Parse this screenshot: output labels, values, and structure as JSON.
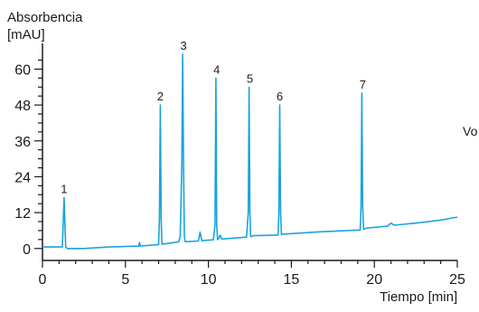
{
  "chart_data": {
    "type": "line",
    "ylabel_line1": "Absorbencia",
    "ylabel_line2": "[mAU]",
    "xlabel": "Tiempo [min]",
    "side_text": "Vo",
    "xlim": [
      0,
      25
    ],
    "ylim": [
      -4,
      68
    ],
    "x_ticks": [
      0,
      5,
      10,
      15,
      20,
      25
    ],
    "y_ticks": [
      0,
      12,
      24,
      36,
      48,
      60
    ],
    "grid": false,
    "line_color": "#1aa3dc",
    "series": [
      {
        "x": [
          0,
          1.2,
          1.3,
          1.4,
          1.5,
          2.5,
          4.0,
          5.8,
          5.85,
          5.9,
          7.0,
          7.05,
          7.1,
          7.15,
          7.2,
          7.3,
          8.2,
          8.3,
          8.4,
          8.45,
          8.5,
          8.55,
          8.6,
          8.7,
          9.4,
          9.5,
          9.6,
          9.7,
          10.3,
          10.4,
          10.45,
          10.5,
          10.55,
          10.6,
          10.7,
          10.8,
          10.9,
          12.3,
          12.4,
          12.45,
          12.5,
          12.55,
          12.6,
          12.7,
          14.2,
          14.25,
          14.3,
          14.35,
          14.4,
          14.5,
          16.5,
          19.15,
          19.2,
          19.25,
          19.3,
          19.35,
          19.4,
          19.5,
          20.8,
          21.0,
          21.2,
          22.5,
          24.0,
          25.0
        ],
        "values": [
          0.5,
          0.5,
          17,
          0.5,
          0,
          0,
          0.5,
          0.8,
          2,
          0.8,
          1.3,
          10,
          48,
          10,
          1.5,
          1.5,
          2.2,
          4,
          28,
          65,
          28,
          4,
          2.3,
          2.3,
          2.5,
          5.5,
          2.6,
          2.7,
          2.9,
          8,
          57,
          8,
          3,
          3.1,
          4.5,
          3.2,
          3.2,
          3.8,
          12,
          54,
          12,
          4,
          4,
          4.3,
          4.5,
          12,
          48,
          12,
          4.7,
          4.8,
          5.5,
          6.2,
          14,
          52,
          14,
          6.4,
          6.5,
          6.8,
          7.5,
          8.5,
          7.8,
          8.5,
          9.5,
          10.5
        ]
      }
    ],
    "peak_labels": [
      {
        "text": "1",
        "x": 1.3,
        "y": 17
      },
      {
        "text": "2",
        "x": 7.1,
        "y": 48
      },
      {
        "text": "3",
        "x": 8.5,
        "y": 65
      },
      {
        "text": "4",
        "x": 10.5,
        "y": 57
      },
      {
        "text": "5",
        "x": 12.5,
        "y": 54
      },
      {
        "text": "6",
        "x": 14.3,
        "y": 48
      },
      {
        "text": "7",
        "x": 19.3,
        "y": 52
      }
    ]
  }
}
